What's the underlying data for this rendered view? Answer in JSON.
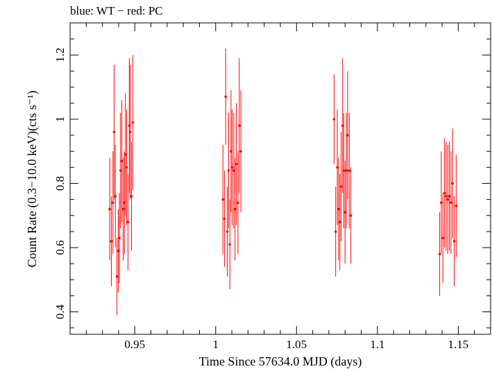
{
  "chart_data": {
    "type": "scatter",
    "title": "blue: WT − red: PC",
    "xlabel": "Time Since 57634.0 MJD (days)",
    "ylabel": "Count Rate (0.3−10.0 keV)(cts s⁻¹)",
    "xlim": [
      0.91,
      1.17
    ],
    "ylim": [
      0.33,
      1.3
    ],
    "xticks": [
      0.95,
      1,
      1.05,
      1.1,
      1.15
    ],
    "xtick_labels": [
      "0.95",
      "1",
      "1.05",
      "1.1",
      "1.15"
    ],
    "yticks": [
      0.4,
      0.6,
      0.8,
      1.0,
      1.2
    ],
    "ytick_labels": [
      "0.4",
      "0.6",
      "0.8",
      "1",
      "1.2"
    ],
    "grid": false,
    "legend": "none",
    "colors": {
      "PC": "#ff0000",
      "WT": "#0000ff"
    },
    "series": [
      {
        "name": "PC",
        "color": "#ff0000",
        "points": [
          [
            0.9345,
            0.72,
            0.16
          ],
          [
            0.9355,
            0.62,
            0.14
          ],
          [
            0.9365,
            0.74,
            0.16
          ],
          [
            0.9372,
            0.96,
            0.21
          ],
          [
            0.938,
            0.76,
            0.16
          ],
          [
            0.939,
            0.51,
            0.12
          ],
          [
            0.9398,
            0.59,
            0.13
          ],
          [
            0.9405,
            0.63,
            0.14
          ],
          [
            0.9412,
            0.84,
            0.18
          ],
          [
            0.942,
            0.87,
            0.19
          ],
          [
            0.9428,
            0.72,
            0.16
          ],
          [
            0.9436,
            0.74,
            0.16
          ],
          [
            0.9442,
            0.89,
            0.19
          ],
          [
            0.945,
            0.85,
            0.18
          ],
          [
            0.9458,
            0.68,
            0.15
          ],
          [
            0.9466,
            0.98,
            0.21
          ],
          [
            0.9472,
            0.96,
            0.21
          ],
          [
            0.948,
            0.76,
            0.17
          ],
          [
            0.9488,
            0.99,
            0.21
          ],
          [
            1.0045,
            0.75,
            0.17
          ],
          [
            1.0055,
            0.69,
            0.15
          ],
          [
            1.0062,
            1.07,
            0.15
          ],
          [
            1.0072,
            0.65,
            0.14
          ],
          [
            1.008,
            0.84,
            0.18
          ],
          [
            1.0088,
            0.61,
            0.14
          ],
          [
            1.0095,
            0.9,
            0.19
          ],
          [
            1.0102,
            0.85,
            0.18
          ],
          [
            1.0112,
            0.84,
            0.18
          ],
          [
            1.012,
            0.72,
            0.16
          ],
          [
            1.0128,
            0.86,
            0.19
          ],
          [
            1.0138,
            0.74,
            0.16
          ],
          [
            1.0146,
            0.98,
            0.21
          ],
          [
            1.0156,
            0.9,
            0.19
          ],
          [
            1.0732,
            1.0,
            0.14
          ],
          [
            1.0742,
            0.65,
            0.14
          ],
          [
            1.0752,
            0.85,
            0.18
          ],
          [
            1.076,
            0.72,
            0.16
          ],
          [
            1.0768,
            0.68,
            0.15
          ],
          [
            1.0776,
            0.79,
            0.17
          ],
          [
            1.0785,
            0.98,
            0.21
          ],
          [
            1.0792,
            0.84,
            0.18
          ],
          [
            1.08,
            0.71,
            0.16
          ],
          [
            1.0808,
            0.84,
            0.18
          ],
          [
            1.0816,
            0.95,
            0.2
          ],
          [
            1.0826,
            0.84,
            0.18
          ],
          [
            1.0836,
            0.7,
            0.15
          ],
          [
            1.1385,
            0.58,
            0.13
          ],
          [
            1.1395,
            0.74,
            0.16
          ],
          [
            1.1405,
            0.63,
            0.14
          ],
          [
            1.1415,
            0.77,
            0.17
          ],
          [
            1.1425,
            0.76,
            0.17
          ],
          [
            1.1435,
            0.75,
            0.17
          ],
          [
            1.1445,
            0.76,
            0.17
          ],
          [
            1.1455,
            0.74,
            0.16
          ],
          [
            1.1465,
            0.8,
            0.17
          ],
          [
            1.1475,
            0.62,
            0.14
          ],
          [
            1.1487,
            0.73,
            0.16
          ]
        ]
      }
    ]
  }
}
